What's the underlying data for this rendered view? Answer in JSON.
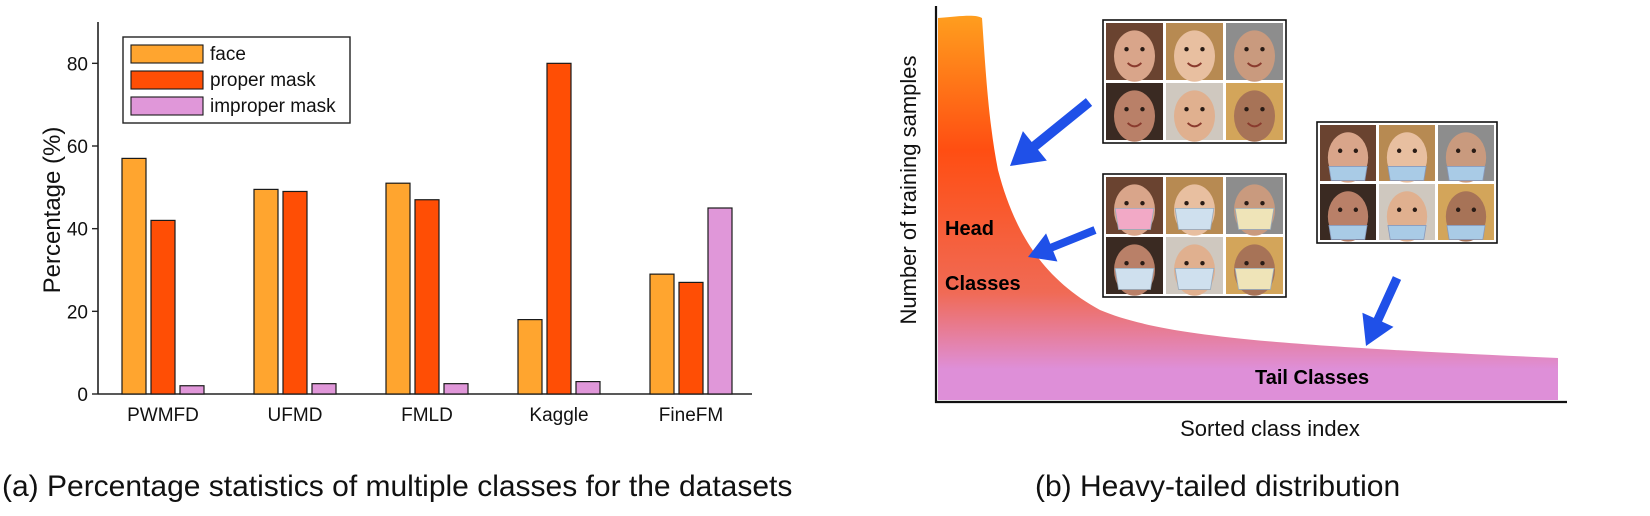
{
  "chart_data": [
    {
      "type": "bar",
      "categories": [
        "PWMFD",
        "UFMD",
        "FMLD",
        "Kaggle",
        "FineFM"
      ],
      "series": [
        {
          "name": "face",
          "values": [
            57,
            49.5,
            51,
            18,
            29
          ]
        },
        {
          "name": "proper mask",
          "values": [
            42,
            49,
            47,
            80,
            27
          ]
        },
        {
          "name": "improper mask",
          "values": [
            2,
            2.5,
            2.5,
            3,
            45
          ]
        }
      ],
      "ylabel": "Percentage (%)",
      "ylim": [
        0,
        90
      ],
      "yticks": [
        "0",
        "20",
        "40",
        "60",
        "80"
      ],
      "legend": "top-left",
      "grid": false
    },
    {
      "type": "area",
      "ylabel": "Number of training samples",
      "xlabel": "Sorted class index",
      "annotations": [
        "Head",
        "Classes",
        "Tail Classes"
      ],
      "legend": "none",
      "grid": false
    }
  ],
  "colors": {
    "face": "#FFA52F",
    "proper_mask": "#FF4E05",
    "improper_mask": "#E097D9",
    "arrow": "#1F50E8",
    "curve_top": "#FF9E1E",
    "curve_mid": "#FF4E12",
    "curve_low": "#F06A55",
    "curve_bottom": "#DE8FD8"
  },
  "images": {
    "grid_faces": "face-photo",
    "grid_proper_mask": "proper-mask-photo",
    "grid_improper_mask": "improper-mask-photo"
  },
  "captions": {
    "a": "(a) Percentage statistics of multiple classes for the datasets",
    "b": "(b) Heavy-tailed distribution"
  }
}
